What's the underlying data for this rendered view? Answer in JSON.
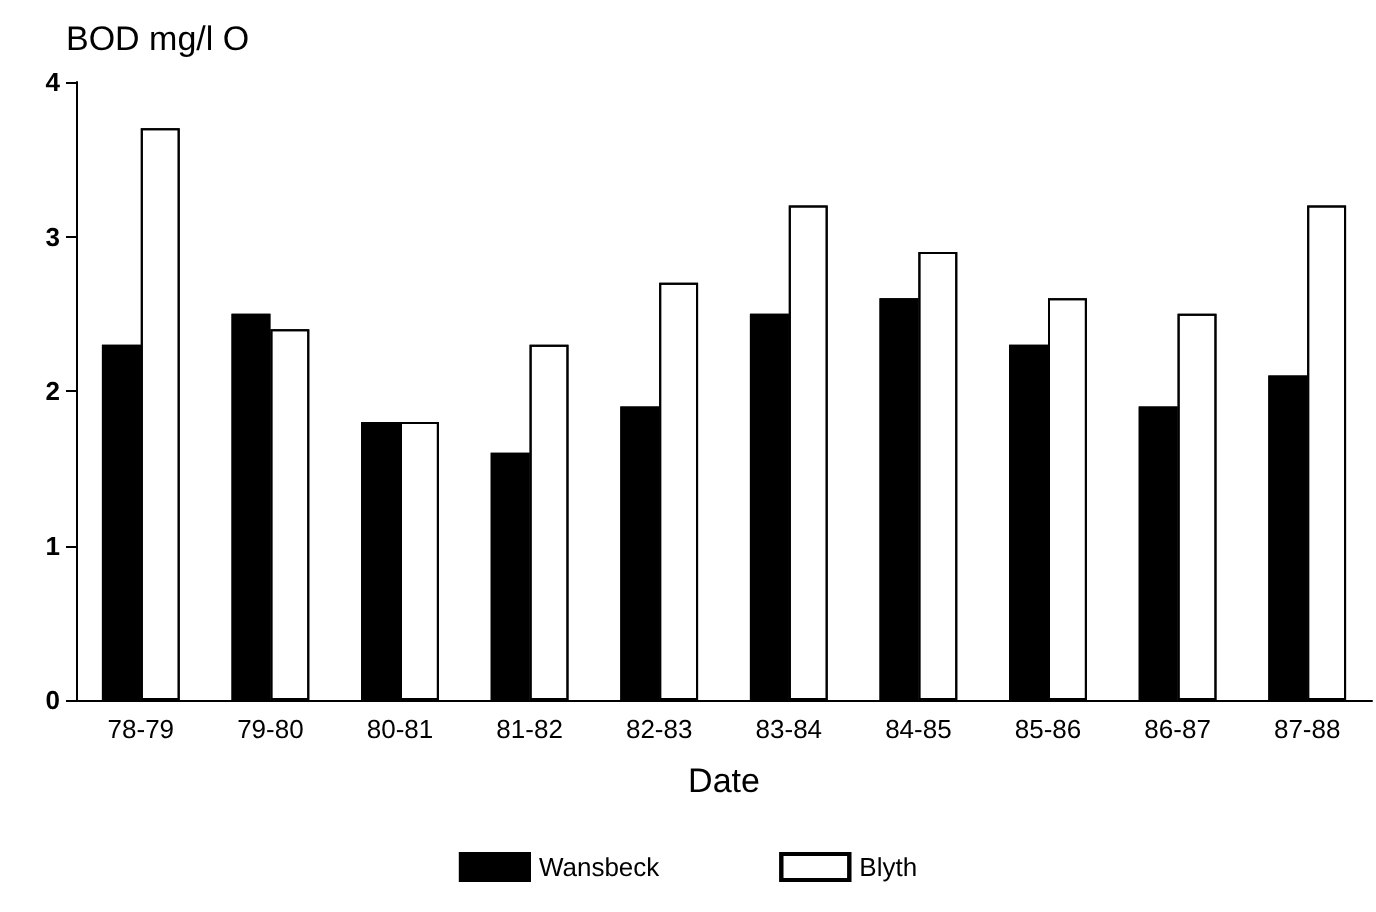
{
  "chart_data": {
    "type": "bar",
    "ylabel": "BOD mg/l O",
    "xlabel": "Date",
    "categories": [
      "78-79",
      "79-80",
      "80-81",
      "81-82",
      "82-83",
      "83-84",
      "84-85",
      "85-86",
      "86-87",
      "87-88"
    ],
    "series": [
      {
        "name": "Wansbeck",
        "color": "#000000",
        "values": [
          2.3,
          2.5,
          1.8,
          1.6,
          1.9,
          2.5,
          2.6,
          2.3,
          1.9,
          2.1
        ]
      },
      {
        "name": "Blyth",
        "color": "#ffffff",
        "values": [
          3.7,
          2.4,
          1.8,
          2.3,
          2.7,
          3.2,
          2.9,
          2.6,
          2.5,
          3.2
        ]
      }
    ],
    "ylim": [
      0,
      4
    ],
    "yticks": [
      0,
      1,
      2,
      3,
      4
    ],
    "grid": false,
    "legend": "bottom"
  }
}
